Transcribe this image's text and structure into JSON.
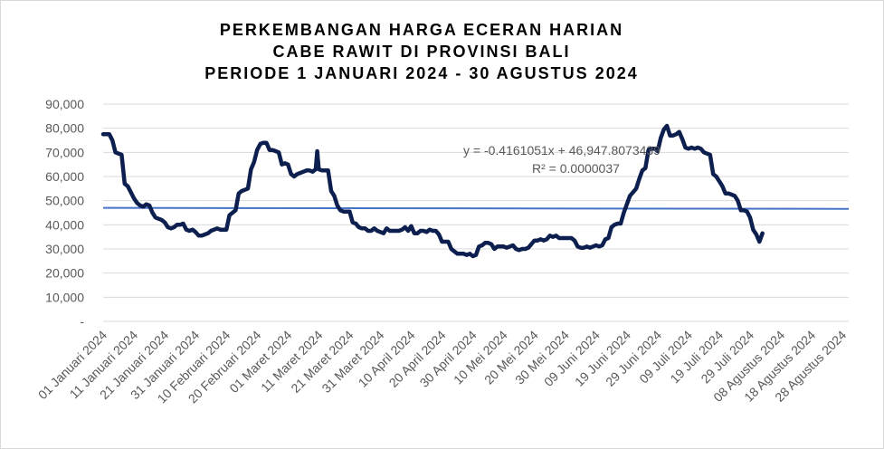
{
  "chart_data": {
    "type": "line",
    "title_lines": [
      "PERKEMBANGAN HARGA ECERAN HARIAN",
      "CABE RAWIT DI PROVINSI BALI",
      "PERIODE 1 JANUARI 2024 - 30 AGUSTUS 2024"
    ],
    "ylim": [
      0,
      90000
    ],
    "y_ticks": [
      "-",
      "10,000",
      "20,000",
      "30,000",
      "40,000",
      "50,000",
      "60,000",
      "70,000",
      "80,000",
      "90,000"
    ],
    "x_ticks": [
      {
        "day": 0,
        "label": "01 Januari 2024"
      },
      {
        "day": 10,
        "label": "11 Januari 2024"
      },
      {
        "day": 20,
        "label": "21 Januari 2024"
      },
      {
        "day": 30,
        "label": "31 Januari 2024"
      },
      {
        "day": 40,
        "label": "10 Februari 2024"
      },
      {
        "day": 50,
        "label": "20 Februari 2024"
      },
      {
        "day": 60,
        "label": "01 Maret 2024"
      },
      {
        "day": 70,
        "label": "11 Maret 2024"
      },
      {
        "day": 80,
        "label": "21 Maret 2024"
      },
      {
        "day": 90,
        "label": "31 Maret 2024"
      },
      {
        "day": 100,
        "label": "10 April 2024"
      },
      {
        "day": 110,
        "label": "20 April 2024"
      },
      {
        "day": 120,
        "label": "30 April 2024"
      },
      {
        "day": 130,
        "label": "10 Mei 2024"
      },
      {
        "day": 140,
        "label": "20 Mei 2024"
      },
      {
        "day": 150,
        "label": "30 Mei 2024"
      },
      {
        "day": 160,
        "label": "09 Juni 2024"
      },
      {
        "day": 170,
        "label": "19 Juni 2024"
      },
      {
        "day": 180,
        "label": "29 Juni 2024"
      },
      {
        "day": 190,
        "label": "09 Juli 2024"
      },
      {
        "day": 200,
        "label": "19 Juli 2024"
      },
      {
        "day": 210,
        "label": "29 Juli 2024"
      },
      {
        "day": 220,
        "label": "08 Agustus 2024"
      },
      {
        "day": 230,
        "label": "18 Agustus 2024"
      },
      {
        "day": 240,
        "label": "28 Agustus 2024"
      }
    ],
    "x_range_days": [
      0,
      242
    ],
    "series": [
      {
        "color": "#0d1f4f",
        "points": [
          [
            0,
            77500
          ],
          [
            2,
            77500
          ],
          [
            3,
            75000
          ],
          [
            4,
            70000
          ],
          [
            6,
            69000
          ],
          [
            7,
            57000
          ],
          [
            8,
            56000
          ],
          [
            9,
            53500
          ],
          [
            10,
            51000
          ],
          [
            11,
            49000
          ],
          [
            12,
            48000
          ],
          [
            13,
            47500
          ],
          [
            14,
            48500
          ],
          [
            15,
            48000
          ],
          [
            16,
            45000
          ],
          [
            17,
            43000
          ],
          [
            18,
            42500
          ],
          [
            19,
            42000
          ],
          [
            20,
            41000
          ],
          [
            21,
            39000
          ],
          [
            22,
            38500
          ],
          [
            23,
            39000
          ],
          [
            24,
            40000
          ],
          [
            25,
            40000
          ],
          [
            26,
            40500
          ],
          [
            27,
            38000
          ],
          [
            28,
            37500
          ],
          [
            29,
            38000
          ],
          [
            30,
            37000
          ],
          [
            31,
            35500
          ],
          [
            32,
            35500
          ],
          [
            33,
            36000
          ],
          [
            34,
            36500
          ],
          [
            35,
            37500
          ],
          [
            36,
            38000
          ],
          [
            37,
            38500
          ],
          [
            38,
            38000
          ],
          [
            39,
            38000
          ],
          [
            40,
            38000
          ],
          [
            41,
            44000
          ],
          [
            42,
            45000
          ],
          [
            43,
            46000
          ],
          [
            44,
            53000
          ],
          [
            45,
            54000
          ],
          [
            46,
            54500
          ],
          [
            47,
            55000
          ],
          [
            48,
            63000
          ],
          [
            49,
            66000
          ],
          [
            50,
            71000
          ],
          [
            51,
            73500
          ],
          [
            52,
            74000
          ],
          [
            53,
            74000
          ],
          [
            54,
            71000
          ],
          [
            55,
            71000
          ],
          [
            56,
            70500
          ],
          [
            57,
            70000
          ],
          [
            58,
            65000
          ],
          [
            59,
            65500
          ],
          [
            60,
            65000
          ],
          [
            61,
            61000
          ],
          [
            62,
            60000
          ],
          [
            63,
            61000
          ],
          [
            64,
            61500
          ],
          [
            65,
            62000
          ],
          [
            66,
            62500
          ],
          [
            67,
            62500
          ],
          [
            68,
            62000
          ],
          [
            69,
            63000
          ],
          [
            69.5,
            70500
          ],
          [
            70,
            63000
          ],
          [
            71,
            62500
          ],
          [
            72,
            62500
          ],
          [
            73,
            62500
          ],
          [
            74,
            54000
          ],
          [
            75,
            52000
          ],
          [
            76,
            48000
          ],
          [
            77,
            46000
          ],
          [
            78,
            45500
          ],
          [
            79,
            45500
          ],
          [
            80,
            45500
          ],
          [
            81,
            41000
          ],
          [
            82,
            40500
          ],
          [
            83,
            39000
          ],
          [
            84,
            38500
          ],
          [
            85,
            38500
          ],
          [
            86,
            37500
          ],
          [
            87,
            37500
          ],
          [
            88,
            38500
          ],
          [
            89,
            37500
          ],
          [
            90,
            37000
          ],
          [
            91,
            36500
          ],
          [
            92,
            38500
          ],
          [
            93,
            37500
          ],
          [
            94,
            37500
          ],
          [
            95,
            37500
          ],
          [
            96,
            37500
          ],
          [
            97,
            38000
          ],
          [
            98,
            39000
          ],
          [
            99,
            37500
          ],
          [
            100,
            39500
          ],
          [
            101,
            36500
          ],
          [
            102,
            36500
          ],
          [
            103,
            37500
          ],
          [
            104,
            37500
          ],
          [
            105,
            37000
          ],
          [
            106,
            38000
          ],
          [
            107,
            37500
          ],
          [
            108,
            37500
          ],
          [
            109,
            36000
          ],
          [
            110,
            33000
          ],
          [
            111,
            33000
          ],
          [
            112,
            33000
          ],
          [
            113,
            30000
          ],
          [
            114,
            29000
          ],
          [
            115,
            28000
          ],
          [
            116,
            28000
          ],
          [
            117,
            28000
          ],
          [
            118,
            27500
          ],
          [
            119,
            28000
          ],
          [
            120,
            27000
          ],
          [
            121,
            27500
          ],
          [
            122,
            31000
          ],
          [
            123,
            31500
          ],
          [
            124,
            32500
          ],
          [
            125,
            32500
          ],
          [
            126,
            32000
          ],
          [
            127,
            30000
          ],
          [
            128,
            31000
          ],
          [
            129,
            31000
          ],
          [
            130,
            31000
          ],
          [
            131,
            30500
          ],
          [
            132,
            31000
          ],
          [
            133,
            31500
          ],
          [
            134,
            30000
          ],
          [
            135,
            29500
          ],
          [
            136,
            30000
          ],
          [
            137,
            30000
          ],
          [
            138,
            30500
          ],
          [
            139,
            32000
          ],
          [
            140,
            33500
          ],
          [
            141,
            33500
          ],
          [
            142,
            34000
          ],
          [
            143,
            33500
          ],
          [
            144,
            34000
          ],
          [
            145,
            35500
          ],
          [
            146,
            35000
          ],
          [
            147,
            35500
          ],
          [
            148,
            34500
          ],
          [
            149,
            34500
          ],
          [
            150,
            34500
          ],
          [
            151,
            34500
          ],
          [
            152,
            34500
          ],
          [
            153,
            33500
          ],
          [
            154,
            31000
          ],
          [
            155,
            30500
          ],
          [
            156,
            30500
          ],
          [
            157,
            31000
          ],
          [
            158,
            30500
          ],
          [
            159,
            31000
          ],
          [
            160,
            31500
          ],
          [
            161,
            31000
          ],
          [
            162,
            31500
          ],
          [
            163,
            34000
          ],
          [
            164,
            34500
          ],
          [
            165,
            39000
          ],
          [
            166,
            40000
          ],
          [
            167,
            40500
          ],
          [
            168,
            40500
          ],
          [
            169,
            45000
          ],
          [
            170,
            48500
          ],
          [
            171,
            52000
          ],
          [
            172,
            53500
          ],
          [
            173,
            55000
          ],
          [
            174,
            59000
          ],
          [
            175,
            62500
          ],
          [
            176,
            63500
          ],
          [
            177,
            71000
          ],
          [
            178,
            71500
          ],
          [
            179,
            71500
          ],
          [
            180,
            70500
          ],
          [
            181,
            76000
          ],
          [
            182,
            79500
          ],
          [
            183,
            81000
          ],
          [
            184,
            77000
          ],
          [
            185,
            77000
          ],
          [
            186,
            77500
          ],
          [
            187,
            78500
          ],
          [
            188,
            75500
          ],
          [
            189,
            72000
          ],
          [
            190,
            71500
          ],
          [
            191,
            72000
          ],
          [
            192,
            71500
          ],
          [
            193,
            72000
          ],
          [
            194,
            71500
          ],
          [
            195,
            70000
          ],
          [
            196,
            69500
          ],
          [
            197,
            69000
          ],
          [
            198,
            61000
          ],
          [
            199,
            60000
          ],
          [
            200,
            58000
          ],
          [
            201,
            56000
          ],
          [
            202,
            53000
          ],
          [
            203,
            53000
          ],
          [
            204,
            52500
          ],
          [
            205,
            52000
          ],
          [
            206,
            50000
          ],
          [
            207,
            46000
          ],
          [
            208,
            46000
          ],
          [
            209,
            45500
          ],
          [
            210,
            43000
          ],
          [
            211,
            38000
          ],
          [
            212,
            36000
          ],
          [
            213,
            33000
          ],
          [
            214,
            36500
          ]
        ]
      }
    ],
    "trendline": {
      "color": "#4472c4",
      "equation": "y = -0.4161051x + 46,947.8073439",
      "r_squared": "R² = 0.0000037",
      "start_value": 47000,
      "end_value": 46600
    },
    "grid": true,
    "legend": "none"
  }
}
